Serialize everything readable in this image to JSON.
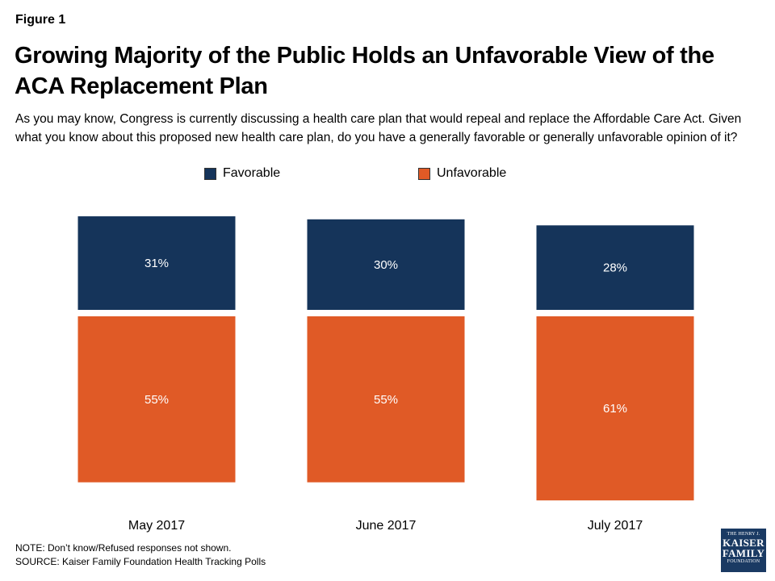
{
  "figure_label": "Figure 1",
  "note": "NOTE: Don’t know/Refused responses not shown.",
  "source": "SOURCE: Kaiser Family Foundation Health Tracking Polls",
  "logo": {
    "line1": "THE HENRY J.",
    "line2": "KAISER",
    "line3": "FAMILY",
    "line4": "FOUNDATION"
  },
  "colors": {
    "favorable": "#15345a",
    "unfavorable": "#e05a26"
  },
  "chart_data": {
    "type": "bar",
    "title": "Growing Majority of the Public Holds an Unfavorable View of the ACA Replacement Plan",
    "subtitle": "As you may know, Congress is currently discussing a health care plan that would repeal and replace the Affordable Care Act. Given what you know about this proposed new health care plan, do you have a generally favorable or generally unfavorable opinion of it?",
    "categories": [
      "May 2017",
      "June 2017",
      "July 2017"
    ],
    "series": [
      {
        "name": "Favorable",
        "values": [
          31,
          30,
          28
        ],
        "labels": [
          "31%",
          "30%",
          "28%"
        ]
      },
      {
        "name": "Unfavorable",
        "values": [
          55,
          55,
          61
        ],
        "labels": [
          "55%",
          "55%",
          "61%"
        ]
      }
    ],
    "xlabel": "",
    "ylabel": "",
    "legend": "top",
    "grid": false
  }
}
